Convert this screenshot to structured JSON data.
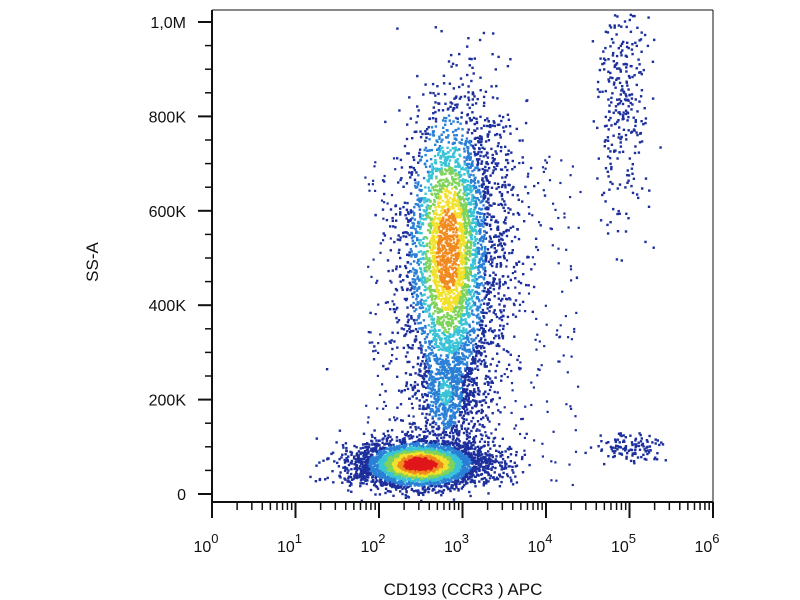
{
  "chart_data": {
    "type": "scatter",
    "subtype": "flow cytometry density dot plot",
    "xlabel": "CD193 (CCR3 ) APC",
    "ylabel": "SS-A",
    "x_scale": "log",
    "xlim": [
      1,
      1000000
    ],
    "ylim": [
      0,
      1050000
    ],
    "x_ticks": [
      {
        "value": 1,
        "base": "10",
        "exp": "0"
      },
      {
        "value": 10,
        "base": "10",
        "exp": "1"
      },
      {
        "value": 100,
        "base": "10",
        "exp": "2"
      },
      {
        "value": 1000,
        "base": "10",
        "exp": "3"
      },
      {
        "value": 10000,
        "base": "10",
        "exp": "4"
      },
      {
        "value": 100000,
        "base": "10",
        "exp": "5"
      },
      {
        "value": 1000000,
        "base": "10",
        "exp": "6"
      }
    ],
    "y_ticks": [
      {
        "value": 0,
        "label": "0"
      },
      {
        "value": 200000,
        "label": "200K"
      },
      {
        "value": 400000,
        "label": "400K"
      },
      {
        "value": 600000,
        "label": "600K"
      },
      {
        "value": 800000,
        "label": "800K"
      },
      {
        "value": 1000000,
        "label": "1,0M"
      }
    ],
    "grid": false,
    "legend": "none",
    "density_colors": [
      "#1c2f9c",
      "#2a7fd6",
      "#39c3d6",
      "#7fd35a",
      "#f2e12c",
      "#f08a1e",
      "#e0161b"
    ],
    "populations": [
      {
        "x_center": 300,
        "y_center": 65000,
        "relative_size": 1.0
      },
      {
        "x_center": 650,
        "y_center": 520000,
        "relative_size": 0.8
      },
      {
        "x_center": 600,
        "y_center": 220000,
        "relative_size": 0.3
      },
      {
        "x_center": 80000,
        "y_center": 850000,
        "relative_size": 0.12
      },
      {
        "x_center": 100000,
        "y_center": 100000,
        "relative_size": 0.05
      }
    ]
  }
}
